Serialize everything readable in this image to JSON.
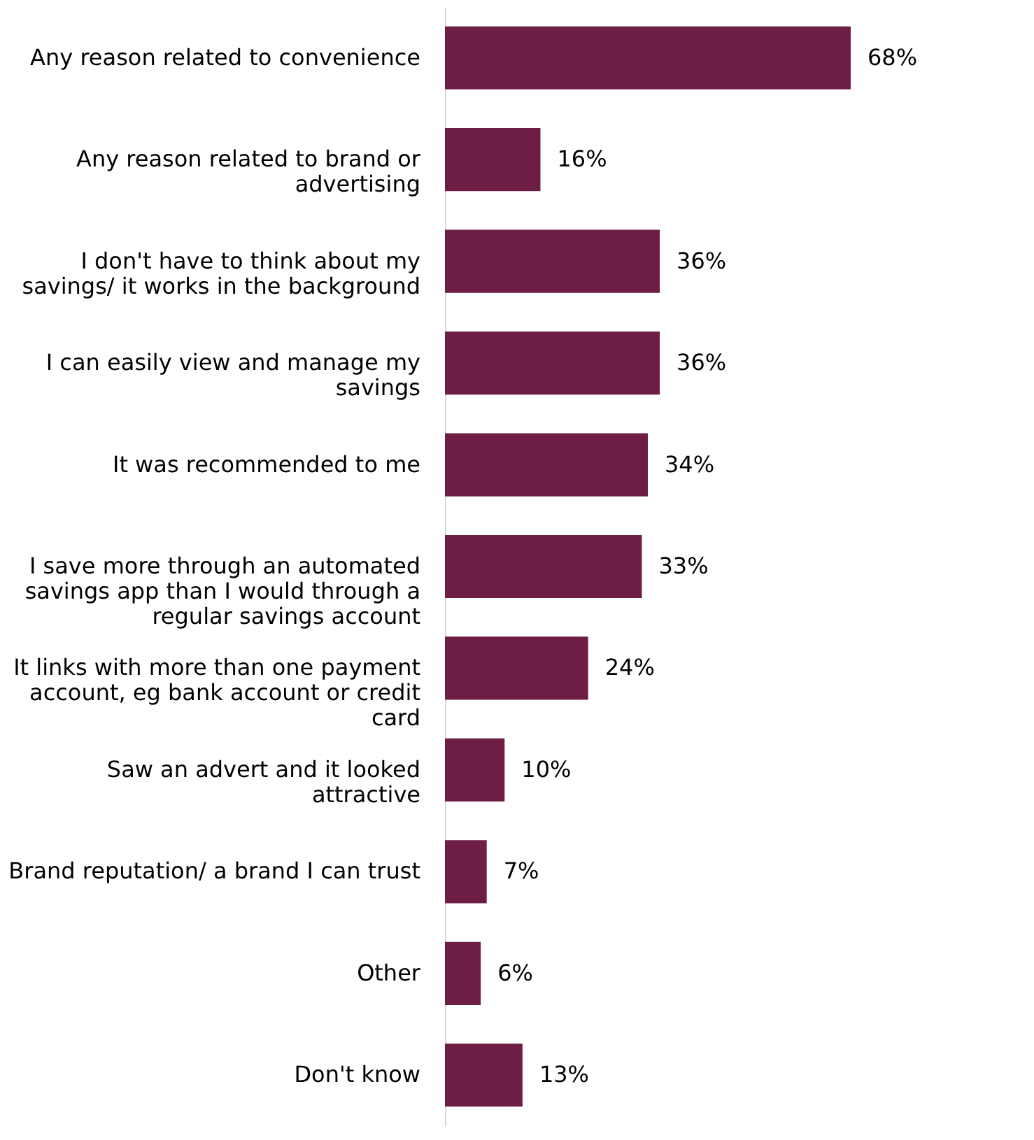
{
  "chart_data": {
    "type": "bar",
    "orientation": "horizontal",
    "categories": [
      "Any reason related to convenience",
      "Any reason related to brand or advertising",
      "I don't have to think about my savings/ it works in the background",
      "I can easily view and manage my savings",
      "It was recommended to me",
      "I save more through an automated savings app than I would through a regular savings account",
      "It links with more than one payment account, eg bank account or credit card",
      "Saw an advert and it looked attractive",
      "Brand reputation/ a brand I can trust",
      "Other",
      "Don't know"
    ],
    "values": [
      68,
      16,
      36,
      36,
      34,
      33,
      24,
      10,
      7,
      6,
      13
    ],
    "value_labels": [
      "68%",
      "16%",
      "36%",
      "36%",
      "34%",
      "33%",
      "24%",
      "10%",
      "7%",
      "6%",
      "13%"
    ],
    "color": "#6e1e45",
    "tick_labels": "y",
    "grid": false
  }
}
